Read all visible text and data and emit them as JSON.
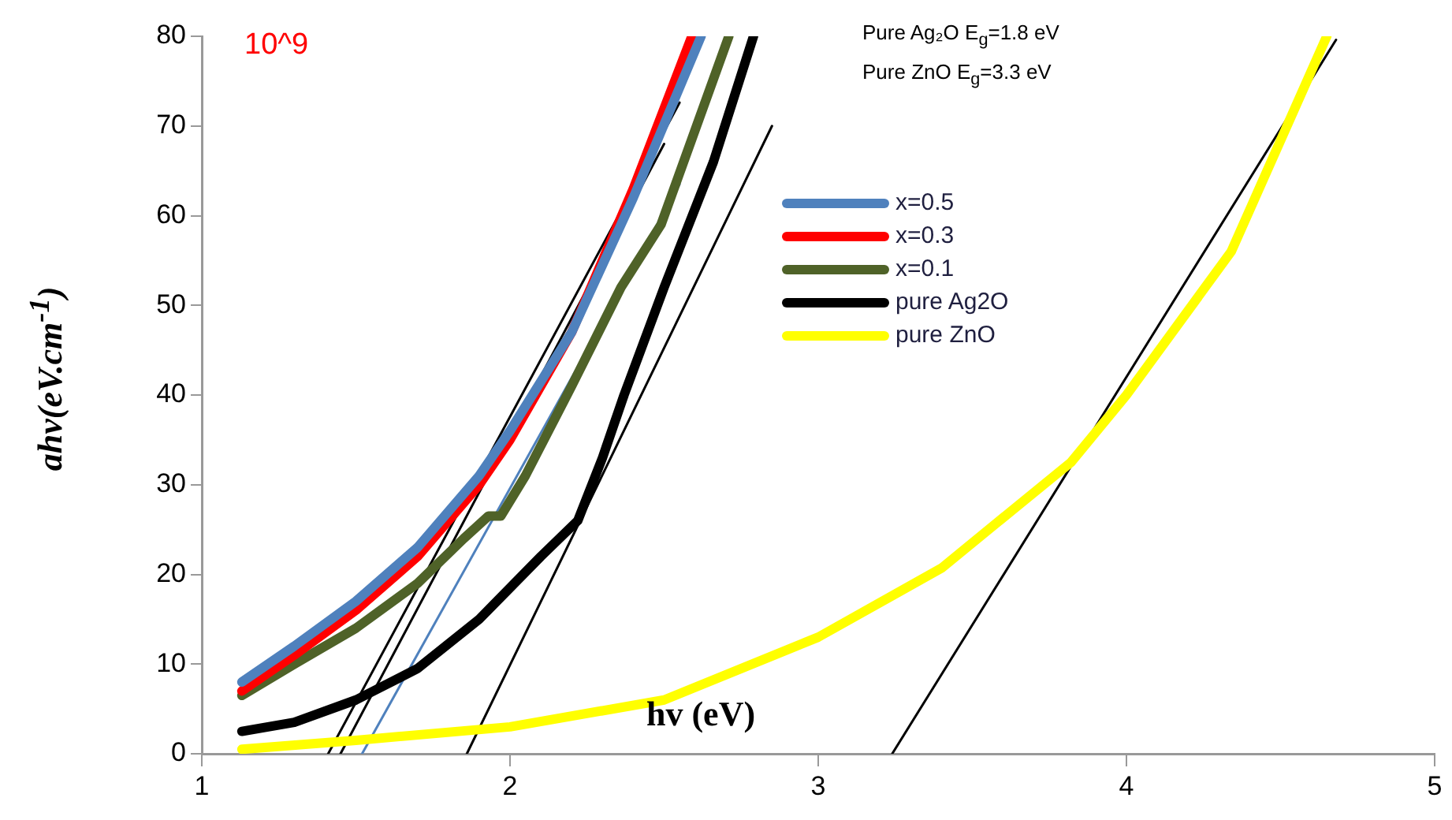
{
  "chart_data": {
    "type": "line",
    "xlabel": "hv (eV)",
    "ylabel": "ahv(eV.cm$^{-1}$)",
    "xlim": [
      1,
      5
    ],
    "xticks": [
      1,
      2,
      3,
      4,
      5
    ],
    "ylim": [
      0,
      80
    ],
    "yticks": [
      0,
      10,
      20,
      30,
      40,
      50,
      60,
      70,
      80
    ],
    "grid": false,
    "legend": "center",
    "marker": "none",
    "line_style": "solid",
    "annotations": [
      "10^9",
      "Pure Ag₂O E$_{g}$=1.8 eV",
      "Pure ZnO E$_{g}$=3.3 eV"
    ],
    "series": [
      {
        "name": "x=0.5",
        "color": "#4f81bd",
        "x": [
          1.13,
          1.3,
          1.5,
          1.7,
          1.9,
          2.0,
          2.2,
          2.4,
          2.62
        ],
        "values": [
          8,
          12,
          17,
          23,
          31,
          36,
          47,
          62,
          80
        ]
      },
      {
        "name": "x=0.3",
        "color": "#ff0000",
        "x": [
          1.13,
          1.3,
          1.5,
          1.7,
          1.9,
          2.0,
          2.2,
          2.4,
          2.59
        ],
        "values": [
          7,
          11,
          16,
          22,
          30,
          35,
          47,
          63,
          80
        ]
      },
      {
        "name": "x=0.1",
        "color": "#4f6228",
        "x": [
          1.13,
          1.3,
          1.5,
          1.7,
          1.85,
          1.93,
          1.97,
          2.05,
          2.2,
          2.36,
          2.49,
          2.71
        ],
        "values": [
          6.5,
          10,
          14,
          19,
          24,
          26.5,
          26.5,
          31,
          41,
          52,
          59,
          80
        ]
      },
      {
        "name": "pure Ag2O",
        "color": "#000000",
        "x": [
          1.13,
          1.3,
          1.5,
          1.7,
          1.9,
          2.1,
          2.22,
          2.3,
          2.37,
          2.5,
          2.66,
          2.79
        ],
        "values": [
          2.5,
          3.5,
          6,
          9.5,
          15,
          22,
          26,
          33,
          40,
          52,
          66,
          80
        ]
      },
      {
        "name": "pure ZnO",
        "color": "#ffff00",
        "x": [
          1.13,
          1.5,
          2.0,
          2.5,
          3.0,
          3.4,
          3.82,
          4.0,
          4.34,
          4.65
        ],
        "values": [
          0.5,
          1.5,
          3,
          6,
          13,
          20.7,
          32.5,
          40,
          56,
          80
        ]
      },
      {
        "type": "line",
        "color": "#000000",
        "x": [
          1.41,
          2.55
        ],
        "values": [
          0,
          72.6
        ]
      },
      {
        "type": "line",
        "color": "#000000",
        "x": [
          1.45,
          2.5
        ],
        "values": [
          0,
          68
        ]
      },
      {
        "type": "line",
        "color": "#4f81bd",
        "x": [
          1.52,
          2.55
        ],
        "values": [
          0,
          63.5
        ]
      },
      {
        "type": "line",
        "color": "#000000",
        "x": [
          1.86,
          2.85
        ],
        "values": [
          0,
          70
        ]
      },
      {
        "type": "line",
        "color": "#000000",
        "x": [
          3.24,
          4.68
        ],
        "values": [
          0,
          79.6
        ]
      }
    ]
  }
}
